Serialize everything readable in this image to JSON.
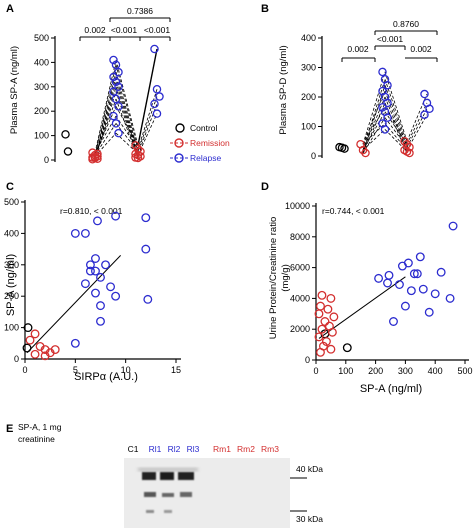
{
  "colors": {
    "control": "#000000",
    "remission": "#d32f2f",
    "relapse": "#2c2ccf",
    "black": "#000000"
  },
  "panels": {
    "A": {
      "letter": "A",
      "ylabel": "Plasma SP-A (ng/ml)",
      "yticks": [
        "0",
        "100",
        "200",
        "300",
        "400",
        "500"
      ],
      "sig": {
        "left": "0.002",
        "mid": "<0.001",
        "right": "<0.001",
        "top": "0.7386"
      }
    },
    "B": {
      "letter": "B",
      "ylabel": "Plasma SP-D (ng/ml)",
      "yticks": [
        "0",
        "100",
        "200",
        "300",
        "400"
      ],
      "sig": {
        "left": "0.002",
        "mid": "<0.001",
        "right": "0.002",
        "top": "0.8760"
      }
    },
    "legend": {
      "control": "Control",
      "remission": "Remission",
      "relapse": "Relapse"
    },
    "C": {
      "letter": "C",
      "ylabel": "SP-A (ng/ml)",
      "xlabel": "SIRPα (A.U.)",
      "corr": "r=0.810, < 0.001",
      "xticks": [
        "0",
        "5",
        "10",
        "15"
      ],
      "yticks": [
        "0",
        "100",
        "200",
        "300",
        "400",
        "500"
      ]
    },
    "D": {
      "letter": "D",
      "ylabel1": "Urine Protein/Creatinine ratio",
      "ylabel2": "(mg/g)",
      "xlabel": "SP-A (ng/ml)",
      "corr": "r=0.744, < 0.001",
      "xticks": [
        "0",
        "100",
        "200",
        "300",
        "400",
        "500"
      ],
      "yticks": [
        "0",
        "2000",
        "4000",
        "6000",
        "8000",
        "10000"
      ]
    },
    "E": {
      "letter": "E",
      "title1": "SP-A, 1 mg",
      "title2": "creatinine",
      "lanes": [
        {
          "label": "C1",
          "group": "control"
        },
        {
          "label": "Rl1",
          "group": "relapse"
        },
        {
          "label": "Rl2",
          "group": "relapse"
        },
        {
          "label": "Rl3",
          "group": "relapse"
        },
        {
          "label": "Rm1",
          "group": "remission"
        },
        {
          "label": "Rm2",
          "group": "remission"
        },
        {
          "label": "Rm3",
          "group": "remission"
        }
      ],
      "markers": [
        "40 kDa",
        "30 kDa"
      ]
    }
  },
  "chart_data": [
    {
      "type": "scatter",
      "panel": "A",
      "ylabel": "Plasma SP-A (ng/ml)",
      "ylim": [
        0,
        500
      ],
      "series": [
        {
          "name": "Control",
          "values": [
            105,
            35
          ]
        },
        {
          "name": "Remission",
          "x": "remission-1",
          "values": [
            30,
            20,
            15,
            10,
            8,
            5,
            3,
            12,
            25
          ]
        },
        {
          "name": "Relapse",
          "values": [
            410,
            390,
            360,
            340,
            320,
            300,
            280,
            250,
            220,
            180,
            150,
            110
          ]
        },
        {
          "name": "Remission",
          "x": "remission-2",
          "values": [
            60,
            45,
            35,
            25,
            20,
            15,
            10,
            8
          ]
        },
        {
          "name": "Relapse",
          "x": "relapse-2",
          "values": [
            455,
            290,
            260,
            230,
            190
          ]
        }
      ]
    },
    {
      "type": "scatter",
      "panel": "B",
      "ylabel": "Plasma SP-D (ng/ml)",
      "ylim": [
        0,
        400
      ],
      "series": [
        {
          "name": "Control",
          "values": [
            30,
            28,
            25
          ]
        },
        {
          "name": "Remission",
          "x": "remission-1",
          "values": [
            40,
            20,
            10
          ]
        },
        {
          "name": "Relapse",
          "values": [
            285,
            260,
            240,
            220,
            200,
            180,
            165,
            150,
            130,
            110,
            90
          ]
        },
        {
          "name": "Remission",
          "x": "remission-2",
          "values": [
            50,
            40,
            30,
            20,
            15,
            10
          ]
        },
        {
          "name": "Relapse",
          "x": "relapse-2",
          "values": [
            210,
            180,
            160,
            140
          ]
        }
      ]
    },
    {
      "type": "scatter",
      "panel": "C",
      "xlabel": "SIRPα (A.U.)",
      "ylabel": "SP-A (ng/ml)",
      "xlim": [
        0,
        15
      ],
      "ylim": [
        0,
        500
      ],
      "series": [
        {
          "name": "Control",
          "points": [
            [
              0.3,
              100
            ],
            [
              0.2,
              35
            ]
          ]
        },
        {
          "name": "Remission",
          "points": [
            [
              0.5,
              60
            ],
            [
              1,
              80
            ],
            [
              1.5,
              40
            ],
            [
              2,
              30
            ],
            [
              2.5,
              20
            ],
            [
              1,
              15
            ],
            [
              3,
              30
            ],
            [
              2,
              10
            ]
          ]
        },
        {
          "name": "Relapse",
          "points": [
            [
              5,
              400
            ],
            [
              6,
              400
            ],
            [
              7.2,
              440
            ],
            [
              9,
              455
            ],
            [
              12,
              450
            ],
            [
              7,
              320
            ],
            [
              8,
              300
            ],
            [
              6.5,
              280
            ],
            [
              7.5,
              260
            ],
            [
              6,
              240
            ],
            [
              8.5,
              230
            ],
            [
              7,
              210
            ],
            [
              12,
              350
            ],
            [
              12.2,
              190
            ],
            [
              7.5,
              170
            ],
            [
              9,
              200
            ],
            [
              7.5,
              120
            ],
            [
              5,
              50
            ],
            [
              6.5,
              300
            ],
            [
              7,
              280
            ]
          ]
        }
      ]
    },
    {
      "type": "scatter",
      "panel": "D",
      "xlabel": "SP-A (ng/ml)",
      "ylabel": "Urine Protein/Creatinine ratio (mg/g)",
      "xlim": [
        0,
        500
      ],
      "ylim": [
        0,
        10000
      ],
      "series": [
        {
          "name": "Control",
          "points": [
            [
              30,
              1700
            ],
            [
              105,
              800
            ]
          ]
        },
        {
          "name": "Remission",
          "points": [
            [
              20,
              4200
            ],
            [
              50,
              4000
            ],
            [
              15,
              3500
            ],
            [
              40,
              3300
            ],
            [
              10,
              3000
            ],
            [
              60,
              2800
            ],
            [
              30,
              2500
            ],
            [
              45,
              2200
            ],
            [
              20,
              2000
            ],
            [
              55,
              1800
            ],
            [
              10,
              1500
            ],
            [
              35,
              1200
            ],
            [
              25,
              900
            ],
            [
              50,
              700
            ],
            [
              15,
              500
            ]
          ]
        },
        {
          "name": "Relapse",
          "points": [
            [
              210,
              5300
            ],
            [
              245,
              5500
            ],
            [
              290,
              6100
            ],
            [
              310,
              6300
            ],
            [
              330,
              5600
            ],
            [
              350,
              6700
            ],
            [
              240,
              5000
            ],
            [
              280,
              4900
            ],
            [
              320,
              4500
            ],
            [
              360,
              4600
            ],
            [
              400,
              4300
            ],
            [
              420,
              5700
            ],
            [
              460,
              8700
            ],
            [
              450,
              4000
            ],
            [
              300,
              3500
            ],
            [
              380,
              3100
            ],
            [
              260,
              2500
            ],
            [
              340,
              5600
            ]
          ]
        }
      ]
    }
  ]
}
